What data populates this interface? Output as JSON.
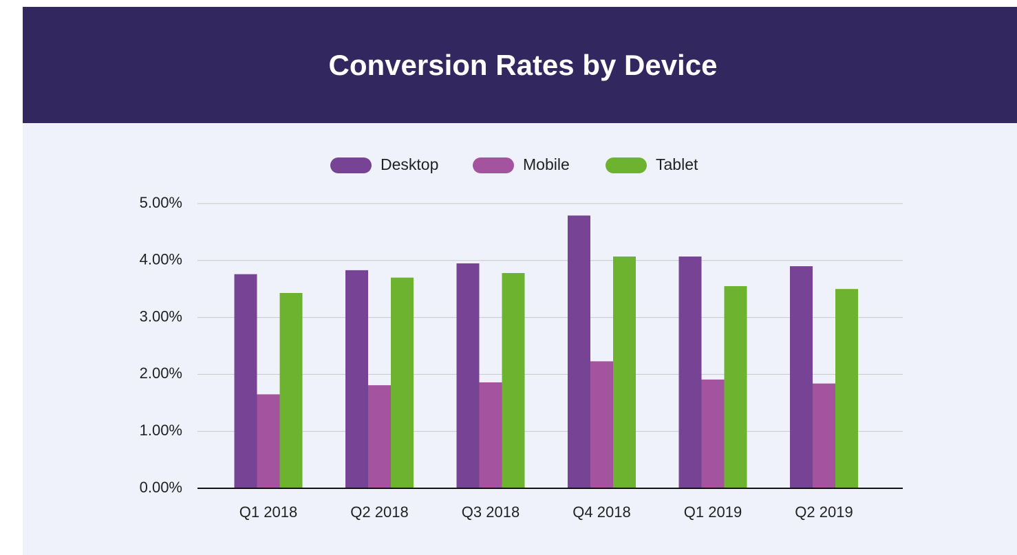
{
  "chart_data": {
    "type": "bar",
    "title": "Conversion Rates by Device",
    "categories": [
      "Q1 2018",
      "Q2 2018",
      "Q3 2018",
      "Q4 2018",
      "Q1 2019",
      "Q2 2019"
    ],
    "series": [
      {
        "name": "Desktop",
        "color": "#774394",
        "values": [
          3.76,
          3.83,
          3.95,
          4.79,
          4.07,
          3.9
        ]
      },
      {
        "name": "Mobile",
        "color": "#a4549e",
        "values": [
          1.65,
          1.81,
          1.86,
          2.23,
          1.91,
          1.84
        ]
      },
      {
        "name": "Tablet",
        "color": "#6db32f",
        "values": [
          3.43,
          3.7,
          3.78,
          4.07,
          3.55,
          3.5
        ]
      }
    ],
    "ylim": [
      0,
      5
    ],
    "yticks": [
      {
        "value": 0,
        "label": "0.00%"
      },
      {
        "value": 1,
        "label": "1.00%"
      },
      {
        "value": 2,
        "label": "2.00%"
      },
      {
        "value": 3,
        "label": "3.00%"
      },
      {
        "value": 4,
        "label": "4.00%"
      },
      {
        "value": 5,
        "label": "5.00%"
      }
    ],
    "grid": true,
    "legend": "top"
  }
}
